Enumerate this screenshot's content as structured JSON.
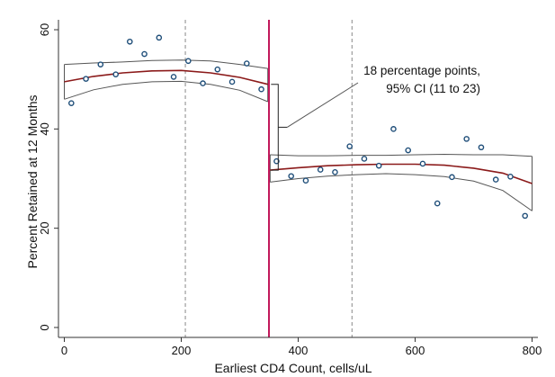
{
  "chart_data": {
    "type": "scatter",
    "xlabel": "Earliest CD4 Count, cells/uL",
    "ylabel": "Percent Retained at 12 Months",
    "xlim": [
      -10,
      810
    ],
    "ylim": [
      -2,
      62
    ],
    "x_ticks": [
      0,
      200,
      400,
      600,
      800
    ],
    "y_ticks": [
      0,
      20,
      40,
      60
    ],
    "grid": false,
    "legend": "none",
    "threshold": 350,
    "reference_lines": [
      207,
      492
    ],
    "points": [
      {
        "x": 12,
        "y": 45.2
      },
      {
        "x": 37,
        "y": 50.1
      },
      {
        "x": 62,
        "y": 53.0
      },
      {
        "x": 88,
        "y": 51.0
      },
      {
        "x": 112,
        "y": 57.6
      },
      {
        "x": 137,
        "y": 55.1
      },
      {
        "x": 162,
        "y": 58.4
      },
      {
        "x": 187,
        "y": 50.5
      },
      {
        "x": 212,
        "y": 53.7
      },
      {
        "x": 237,
        "y": 49.2
      },
      {
        "x": 262,
        "y": 52.0
      },
      {
        "x": 287,
        "y": 49.5
      },
      {
        "x": 312,
        "y": 53.2
      },
      {
        "x": 337,
        "y": 48.0
      },
      {
        "x": 363,
        "y": 33.5
      },
      {
        "x": 388,
        "y": 30.5
      },
      {
        "x": 413,
        "y": 29.6
      },
      {
        "x": 438,
        "y": 31.8
      },
      {
        "x": 463,
        "y": 31.3
      },
      {
        "x": 488,
        "y": 36.5
      },
      {
        "x": 513,
        "y": 34.0
      },
      {
        "x": 538,
        "y": 32.6
      },
      {
        "x": 563,
        "y": 40.0
      },
      {
        "x": 588,
        "y": 35.7
      },
      {
        "x": 613,
        "y": 33.0
      },
      {
        "x": 638,
        "y": 25.0
      },
      {
        "x": 663,
        "y": 30.3
      },
      {
        "x": 688,
        "y": 38.0
      },
      {
        "x": 713,
        "y": 36.3
      },
      {
        "x": 738,
        "y": 29.8
      },
      {
        "x": 763,
        "y": 30.4
      },
      {
        "x": 788,
        "y": 22.5
      }
    ],
    "fits": [
      {
        "x": [
          0,
          50,
          100,
          150,
          200,
          250,
          300,
          348
        ],
        "y": [
          49.5,
          50.6,
          51.3,
          51.7,
          51.8,
          51.3,
          50.4,
          49.0
        ],
        "lower": [
          46.0,
          47.9,
          49.0,
          49.5,
          49.6,
          49.0,
          47.8,
          45.5
        ],
        "upper": [
          53.0,
          53.3,
          53.5,
          53.8,
          53.9,
          53.7,
          53.0,
          52.2
        ]
      },
      {
        "x": [
          352,
          400,
          450,
          500,
          550,
          600,
          650,
          700,
          750,
          800
        ],
        "y": [
          31.7,
          32.2,
          32.6,
          32.8,
          32.9,
          32.9,
          32.7,
          32.1,
          31.1,
          29.0
        ],
        "lower": [
          29.3,
          30.0,
          30.5,
          30.8,
          31.0,
          30.8,
          30.4,
          29.5,
          27.6,
          23.5
        ],
        "upper": [
          34.8,
          34.6,
          34.6,
          34.7,
          34.7,
          34.8,
          34.9,
          34.8,
          34.8,
          34.5
        ]
      }
    ],
    "annotation": {
      "lines": [
        "18 percentage points,",
        "95% CI (11 to 23)"
      ],
      "bracket_y": [
        49.0,
        31.7
      ],
      "anchor_x": 352
    },
    "colors": {
      "fit_line": "#8b1a1a",
      "ci_line": "#555555",
      "point_stroke": "#1f4e79",
      "threshold_line": "#c2185b",
      "reference_line": "#888888",
      "axis": "#333333"
    }
  }
}
